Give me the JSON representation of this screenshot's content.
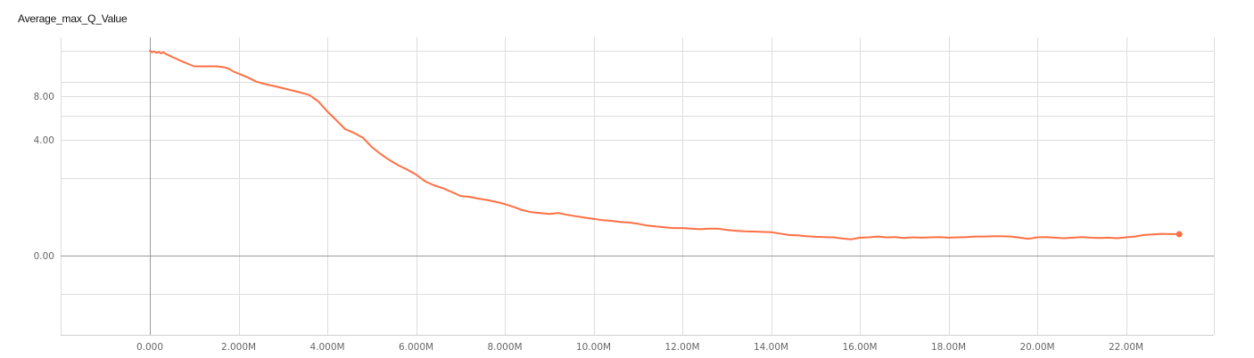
{
  "chart_data": {
    "type": "line",
    "title": "Average_max_Q_Value",
    "xlabel": "",
    "ylabel": "",
    "x_ticks": [
      {
        "value": 0,
        "label": "0.000"
      },
      {
        "value": 2000000,
        "label": "2.000M"
      },
      {
        "value": 4000000,
        "label": "4.000M"
      },
      {
        "value": 6000000,
        "label": "6.000M"
      },
      {
        "value": 8000000,
        "label": "8.000M"
      },
      {
        "value": 10000000,
        "label": "10.00M"
      },
      {
        "value": 12000000,
        "label": "12.00M"
      },
      {
        "value": 14000000,
        "label": "14.00M"
      },
      {
        "value": 16000000,
        "label": "16.00M"
      },
      {
        "value": 18000000,
        "label": "18.00M"
      },
      {
        "value": 20000000,
        "label": "20.00M"
      },
      {
        "value": 22000000,
        "label": "22.00M"
      }
    ],
    "y_ticks": [
      {
        "value": 0,
        "label": "0.00"
      },
      {
        "value": 4,
        "label": "4.00"
      },
      {
        "value": 8,
        "label": "8.00"
      }
    ],
    "xlim": [
      -2000000,
      24000000
    ],
    "grid": true,
    "series": [
      {
        "color": "#ff7043",
        "x": [
          0,
          50000,
          100000,
          150000,
          200000,
          250000,
          300000,
          350000,
          400000,
          450000,
          500000,
          600000,
          700000,
          800000,
          900000,
          1000000,
          1100000,
          1200000,
          1300000,
          1400000,
          1500000,
          1600000,
          1700000,
          1800000,
          1900000,
          2000000,
          2100000,
          2200000,
          2300000,
          2400000,
          2600000,
          2800000,
          3000000,
          3200000,
          3400000,
          3600000,
          3800000,
          4000000,
          4200000,
          4400000,
          4600000,
          4800000,
          5000000,
          5200000,
          5400000,
          5600000,
          5800000,
          6000000,
          6200000,
          6400000,
          6600000,
          6800000,
          7000000,
          7200000,
          7400000,
          7600000,
          7800000,
          8000000,
          8200000,
          8400000,
          8600000,
          8800000,
          9000000,
          9200000,
          9400000,
          9600000,
          9800000,
          10000000,
          10200000,
          10400000,
          10600000,
          10800000,
          11000000,
          11200000,
          11400000,
          11600000,
          11800000,
          12000000,
          12200000,
          12400000,
          12600000,
          12800000,
          13000000,
          13200000,
          13400000,
          13600000,
          13800000,
          14000000,
          14200000,
          14400000,
          14600000,
          14800000,
          15000000,
          15200000,
          15400000,
          15600000,
          15800000,
          16000000,
          16200000,
          16400000,
          16600000,
          16800000,
          17000000,
          17200000,
          17400000,
          17600000,
          17800000,
          18000000,
          18200000,
          18400000,
          18600000,
          18800000,
          19000000,
          19200000,
          19400000,
          19600000,
          19800000,
          20000000,
          20200000,
          20400000,
          20600000,
          20800000,
          21000000,
          21200000,
          21400000,
          21600000,
          21800000,
          22000000,
          22200000,
          22400000,
          22600000,
          22800000,
          23000000,
          23200000
        ],
        "y": [
          20.5,
          20.1,
          20.3,
          19.9,
          20.2,
          19.8,
          20.1,
          19.7,
          19.4,
          19.1,
          18.8,
          18.3,
          17.7,
          17.2,
          16.7,
          16.2,
          16.2,
          16.2,
          16.2,
          16.2,
          16.2,
          16.1,
          15.9,
          15.4,
          14.7,
          14.2,
          13.7,
          13.2,
          12.6,
          12.0,
          11.3,
          10.8,
          10.2,
          9.6,
          9.0,
          8.3,
          7.5,
          6.6,
          5.8,
          4.98,
          4.64,
          4.2,
          3.75,
          3.51,
          3.3,
          3.12,
          2.97,
          2.8,
          2.57,
          2.43,
          2.33,
          2.2,
          2.06,
          2.03,
          1.97,
          1.92,
          1.86,
          1.78,
          1.68,
          1.57,
          1.5,
          1.47,
          1.44,
          1.47,
          1.41,
          1.36,
          1.31,
          1.27,
          1.22,
          1.2,
          1.16,
          1.14,
          1.1,
          1.04,
          1.01,
          0.98,
          0.95,
          0.95,
          0.93,
          0.91,
          0.93,
          0.93,
          0.89,
          0.86,
          0.84,
          0.83,
          0.82,
          0.81,
          0.76,
          0.71,
          0.7,
          0.67,
          0.65,
          0.64,
          0.63,
          0.59,
          0.56,
          0.62,
          0.63,
          0.66,
          0.63,
          0.64,
          0.61,
          0.63,
          0.62,
          0.63,
          0.64,
          0.62,
          0.63,
          0.64,
          0.66,
          0.66,
          0.67,
          0.67,
          0.66,
          0.62,
          0.58,
          0.63,
          0.64,
          0.62,
          0.6,
          0.62,
          0.64,
          0.62,
          0.61,
          0.62,
          0.6,
          0.63,
          0.66,
          0.71,
          0.73,
          0.75,
          0.74,
          0.74
        ]
      }
    ]
  }
}
